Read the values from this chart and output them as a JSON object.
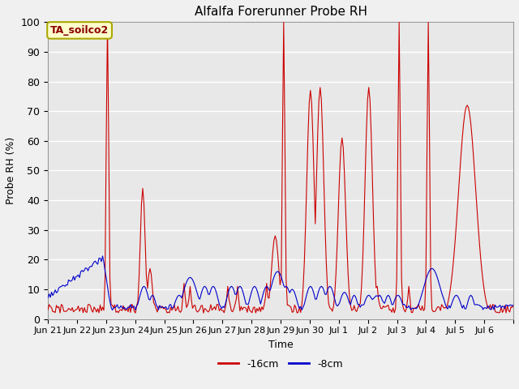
{
  "title": "Alfalfa Forerunner Probe RH",
  "ylabel": "Probe RH (%)",
  "xlabel": "Time",
  "annotation": "TA_soilco2",
  "ylim": [
    0,
    100
  ],
  "bg_color": "#e8e8e8",
  "grid_color": "#ffffff",
  "line_color_16cm": "#cc0000",
  "line_color_8cm": "#0000cc",
  "legend_16cm": "-16cm",
  "legend_8cm": "-8cm",
  "tick_labels": [
    "Jun 21",
    "Jun 22",
    "Jun 23",
    "Jun 24",
    "Jun 25",
    "Jun 26",
    "Jun 27",
    "Jun 28",
    "Jun 29",
    "Jun 30",
    "Jul 1",
    "Jul 2",
    "Jul 3",
    "Jul 4",
    "Jul 5",
    "Jul 6"
  ]
}
